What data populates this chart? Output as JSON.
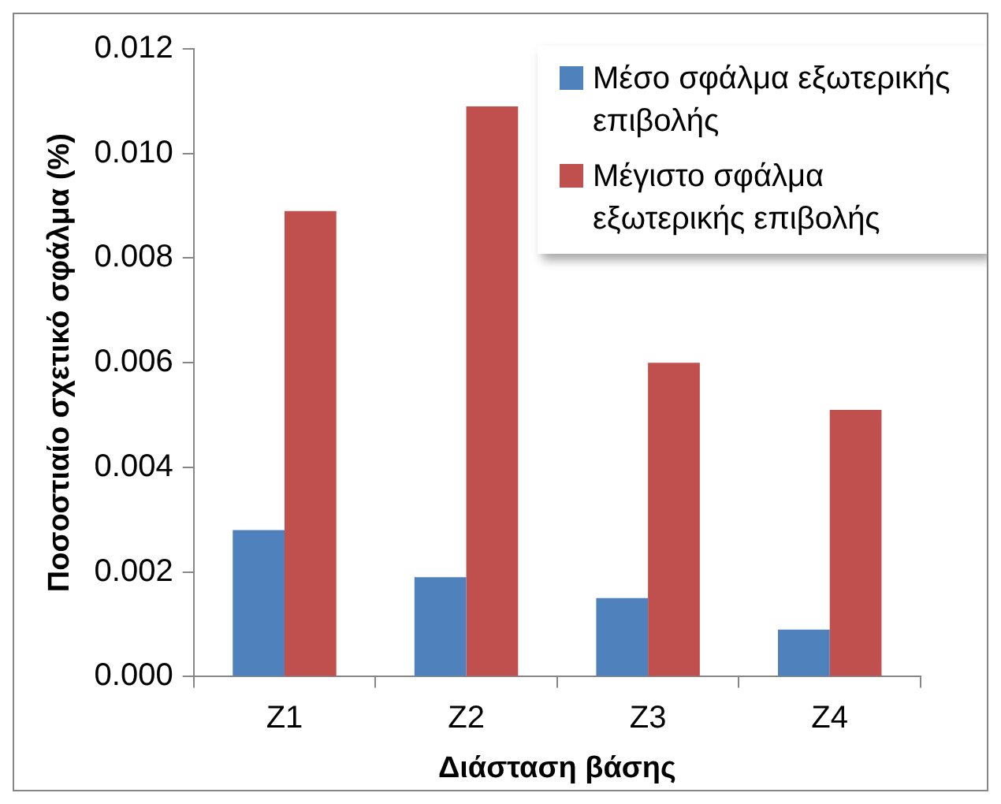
{
  "chart_data": {
    "type": "bar",
    "xlabel": "Διάσταση βάσης",
    "ylabel": "Ποσοστιαίο σχετικό σφάλμα (%)",
    "categories": [
      "Z1",
      "Z2",
      "Z3",
      "Z4"
    ],
    "series": [
      {
        "name": "Μέσο σφάλμα εξωτερικής επιβολής",
        "color": "#4f81bd",
        "values": [
          0.0028,
          0.0019,
          0.0015,
          0.0009
        ]
      },
      {
        "name": "Μέγιστο σφάλμα εξωτερικής επιβολής",
        "color": "#c0504d",
        "values": [
          0.0089,
          0.0109,
          0.006,
          0.0051
        ]
      }
    ],
    "ylim": [
      0,
      0.012
    ],
    "yticks": [
      {
        "value": 0,
        "label": "0.000"
      },
      0.002,
      0.004,
      0.006,
      0.008,
      {
        "value": 0.01,
        "label": "0.010"
      },
      0.012
    ],
    "grid": false,
    "legend": "top right"
  }
}
